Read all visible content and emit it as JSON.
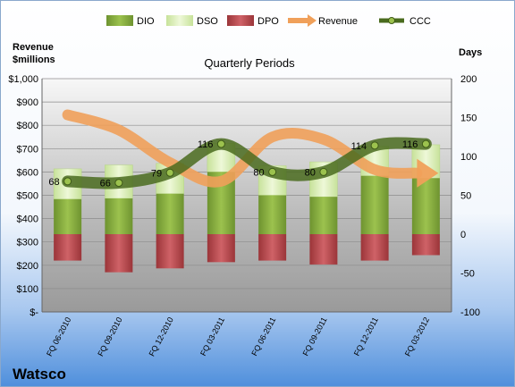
{
  "chart_data": {
    "type": "bar",
    "title": "Quarterly Periods",
    "company": "Watsco",
    "left_axis_label_line1": "Revenue",
    "left_axis_label_line2": "$millions",
    "right_axis_label": "Days",
    "categories": [
      "FQ 06-2010",
      "FQ 09-2010",
      "FQ 12-2010",
      "FQ 03-2011",
      "FQ 06-2011",
      "FQ 09-2011",
      "FQ 12-2011",
      "FQ 03-2012"
    ],
    "left_ylim": [
      0,
      1000
    ],
    "left_ticks": [
      0,
      100,
      200,
      300,
      400,
      500,
      600,
      700,
      800,
      900,
      1000
    ],
    "left_tick_labels": [
      "$-",
      "$100",
      "$200",
      "$300",
      "$400",
      "$500",
      "$600",
      "$700",
      "$800",
      "$900",
      "$1,000"
    ],
    "right_ylim": [
      -100,
      200
    ],
    "right_ticks": [
      -100,
      -50,
      0,
      50,
      100,
      150,
      200
    ],
    "right_tick_labels": [
      "-100",
      "-50",
      "0",
      "50",
      "100",
      "150",
      "200"
    ],
    "grid": true,
    "legend_position": "top",
    "series": [
      {
        "name": "DIO",
        "axis": "right",
        "kind": "bar",
        "color": "#7ea33a",
        "values": [
          45,
          46,
          52,
          80,
          50,
          48,
          75,
          72
        ]
      },
      {
        "name": "DSO",
        "axis": "right",
        "kind": "bar-stack",
        "color": "#d8ecb0",
        "values": [
          39,
          43,
          39,
          37,
          38,
          45,
          38,
          43
        ]
      },
      {
        "name": "DPO",
        "axis": "right",
        "kind": "bar-negative",
        "color": "#b5454a",
        "values": [
          -34,
          -49,
          -44,
          -36,
          -34,
          -39,
          -34,
          -27
        ]
      },
      {
        "name": "Revenue",
        "axis": "left",
        "kind": "line",
        "color": "#f0a05a",
        "values": [
          845,
          780,
          640,
          560,
          750,
          740,
          610,
          595
        ]
      },
      {
        "name": "CCC",
        "axis": "right",
        "kind": "line",
        "color": "#4a6b1e",
        "values": [
          68,
          66,
          79,
          116,
          80,
          80,
          114,
          116
        ],
        "labels": [
          "68",
          "66",
          "79",
          "116",
          "80",
          "80",
          "114",
          "116"
        ]
      }
    ]
  }
}
